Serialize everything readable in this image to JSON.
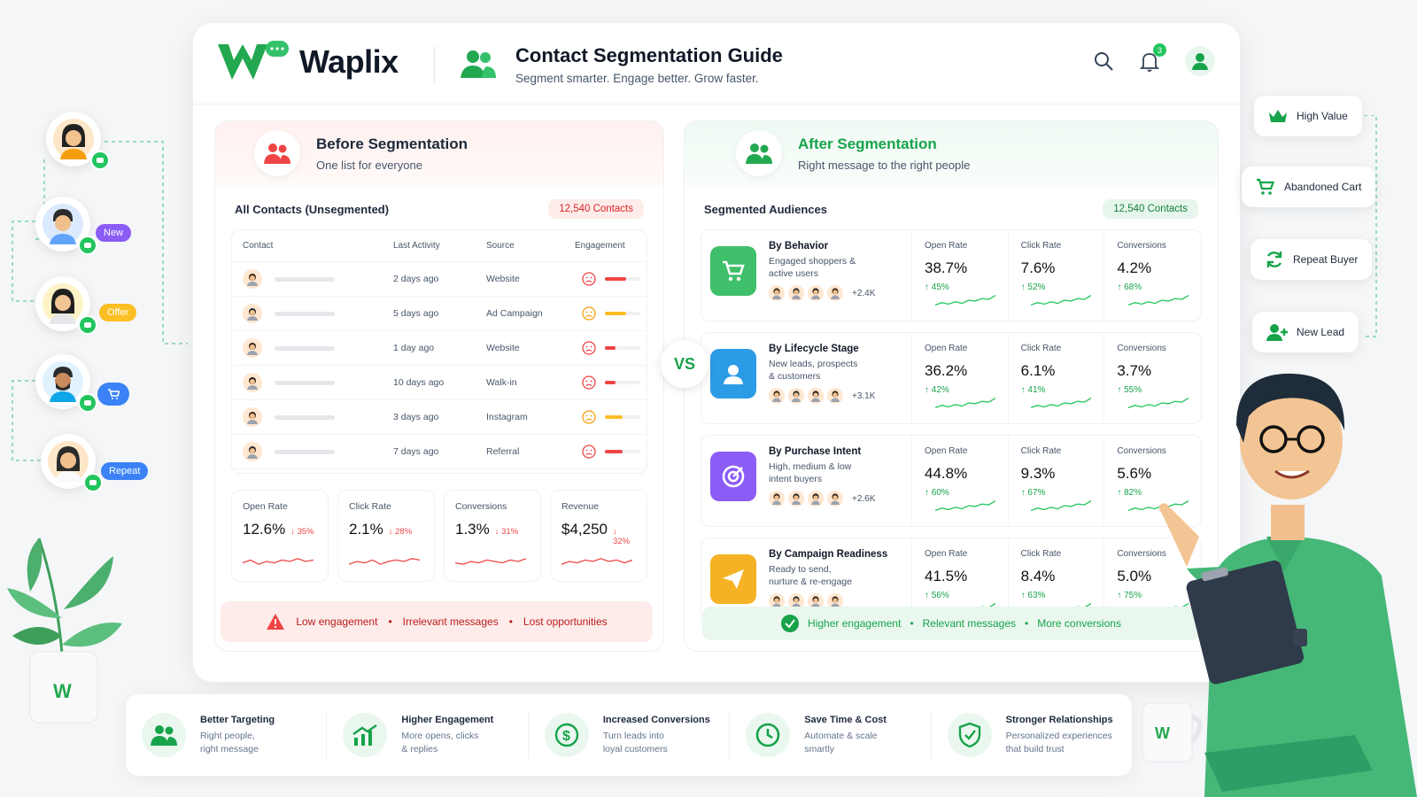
{
  "brand": {
    "name": "Waplix",
    "green": "#22a84f"
  },
  "header": {
    "title": "Contact Segmentation Guide",
    "subtitle": "Segment smarter. Engage better. Grow faster.",
    "notification_count": "3"
  },
  "before": {
    "title": "Before Segmentation",
    "subtitle": "One list for everyone",
    "list_title": "All Contacts (Unsegmented)",
    "count": "12,540 Contacts",
    "columns": [
      "Contact",
      "Last Activity",
      "Source",
      "Engagement"
    ],
    "rows": [
      {
        "activity": "2 days ago",
        "source": "Website",
        "engagement": 0.6
      },
      {
        "activity": "5 days ago",
        "source": "Ad Campaign",
        "engagement": 0.6
      },
      {
        "activity": "1 day ago",
        "source": "Website",
        "engagement": 0.3
      },
      {
        "activity": "10 days ago",
        "source": "Walk-in",
        "engagement": 0.3
      },
      {
        "activity": "3 days ago",
        "source": "Instagram",
        "engagement": 0.5
      },
      {
        "activity": "7 days ago",
        "source": "Referral",
        "engagement": 0.5
      }
    ],
    "metrics": [
      {
        "label": "Open Rate",
        "value": "12.6%",
        "delta": "↓ 35%"
      },
      {
        "label": "Click Rate",
        "value": "2.1%",
        "delta": "↓ 28%"
      },
      {
        "label": "Conversions",
        "value": "1.3%",
        "delta": "↓ 31%"
      },
      {
        "label": "Revenue",
        "value": "$4,250",
        "delta": "↓ 32%"
      }
    ],
    "warning": [
      "Low engagement",
      "Irrelevant messages",
      "Lost opportunities"
    ]
  },
  "vs": "VS",
  "after": {
    "title": "After Segmentation",
    "subtitle": "Right message to the right people",
    "list_title": "Segmented Audiences",
    "count": "12,540 Contacts",
    "segments": [
      {
        "name": "By Behavior",
        "desc1": "Engaged shoppers &",
        "desc2": "active users",
        "more": "+2.4K",
        "color": "#3fbf6a",
        "icon": "cart-icon",
        "metrics": [
          {
            "label": "Open Rate",
            "value": "38.7%",
            "up": "↑ 45%"
          },
          {
            "label": "Click Rate",
            "value": "7.6%",
            "up": "↑ 52%"
          },
          {
            "label": "Conversions",
            "value": "4.2%",
            "up": "↑ 68%"
          }
        ]
      },
      {
        "name": "By Lifecycle Stage",
        "desc1": "New leads, prospects",
        "desc2": "& customers",
        "more": "+3.1K",
        "color": "#2b9be6",
        "icon": "user-icon",
        "metrics": [
          {
            "label": "Open Rate",
            "value": "36.2%",
            "up": "↑ 42%"
          },
          {
            "label": "Click Rate",
            "value": "6.1%",
            "up": "↑ 41%"
          },
          {
            "label": "Conversions",
            "value": "3.7%",
            "up": "↑ 55%"
          }
        ]
      },
      {
        "name": "By Purchase Intent",
        "desc1": "High, medium & low",
        "desc2": "intent buyers",
        "more": "+2.6K",
        "color": "#8b5cf6",
        "icon": "target-icon",
        "metrics": [
          {
            "label": "Open Rate",
            "value": "44.8%",
            "up": "↑ 60%"
          },
          {
            "label": "Click Rate",
            "value": "9.3%",
            "up": "↑ 67%"
          },
          {
            "label": "Conversions",
            "value": "5.6%",
            "up": "↑ 82%"
          }
        ]
      },
      {
        "name": "By Campaign Readiness",
        "desc1": "Ready to send,",
        "desc2": "nurture & re-engage",
        "more": "",
        "color": "#f5b225",
        "icon": "send-icon",
        "metrics": [
          {
            "label": "Open Rate",
            "value": "41.5%",
            "up": "↑ 56%"
          },
          {
            "label": "Click Rate",
            "value": "8.4%",
            "up": "↑ 63%"
          },
          {
            "label": "Conversions",
            "value": "5.0%",
            "up": "↑ 75%"
          }
        ]
      }
    ],
    "good": [
      "Higher engagement",
      "Relevant messages",
      "More conversions"
    ]
  },
  "side_tags_left": [
    "New",
    "Offer",
    "Repeat"
  ],
  "side_tags_right": [
    "High Value",
    "Abandoned Cart",
    "Repeat Buyer",
    "New Lead"
  ],
  "benefits": [
    {
      "title": "Better Targeting",
      "l1": "Right people,",
      "l2": "right message",
      "icon": "people-icon"
    },
    {
      "title": "Higher Engagement",
      "l1": "More opens, clicks",
      "l2": "& replies",
      "icon": "chart-up-icon"
    },
    {
      "title": "Increased Conversions",
      "l1": "Turn leads into",
      "l2": "loyal customers",
      "icon": "dollar-icon"
    },
    {
      "title": "Save Time & Cost",
      "l1": "Automate & scale",
      "l2": "smartly",
      "icon": "clock-icon"
    },
    {
      "title": "Stronger Relationships",
      "l1": "Personalized experiences",
      "l2": "that build trust",
      "icon": "shield-check-icon"
    }
  ]
}
